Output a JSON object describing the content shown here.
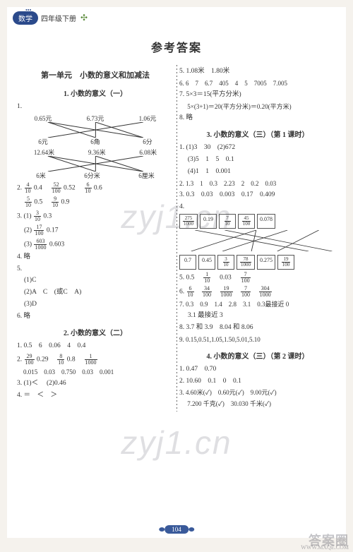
{
  "header": {
    "badge": "数学",
    "grade": "四年级下册",
    "clover": "✣"
  },
  "title": "参考答案",
  "watermark": "zyj1.cn",
  "pageNumber": "104",
  "cornerStamp": "答案圈",
  "cornerUrl": "WWW.MXQE.COM",
  "left": {
    "unitTitle": "第一单元　小数的意义和加减法",
    "sec1": "1. 小数的意义（一）",
    "q1_top1": [
      "0.65元",
      "6.73元",
      "1.06元"
    ],
    "q1_bot1": [
      "6元",
      "6角",
      "6分"
    ],
    "q1_top2": [
      "12.64米",
      "9.36米",
      "6.08米"
    ],
    "q1_bot2": [
      "6米",
      "6分米",
      "6厘米"
    ],
    "q1_pref": "1.",
    "q2": "2.",
    "q2a": {
      "n": "4",
      "d": "10",
      "dec": "0.4"
    },
    "q2b": {
      "n": "52",
      "d": "100",
      "dec": "0.52"
    },
    "q2c": {
      "n": "6",
      "d": "10",
      "dec": "0.6"
    },
    "q2d": {
      "n": "5",
      "d": "10",
      "dec": "0.5"
    },
    "q2e": {
      "n": "9",
      "d": "10",
      "dec": "0.9"
    },
    "q3": "3.",
    "q3a": {
      "lbl": "(1)",
      "n": "3",
      "d": "10",
      "dec": "0.3"
    },
    "q3b": {
      "lbl": "(2)",
      "n": "17",
      "d": "100",
      "dec": "0.17"
    },
    "q3c": {
      "lbl": "(3)",
      "n": "603",
      "d": "1000",
      "dec": "0.603"
    },
    "q4": "4. 略",
    "q5": "5.",
    "q5a": "(1)C",
    "q5b": "(2)A　C　(或C　A)",
    "q5c": "(3)D",
    "q6": "6. 略",
    "sec2": "2. 小数的意义（二）",
    "s2_1": "1. 0.5　6　0.06　4　0.4",
    "s2_2": "2.",
    "s2_2a": {
      "n": "29",
      "d": "100",
      "dec": "0.29"
    },
    "s2_2b": {
      "n": "8",
      "d": "10",
      "dec": "0.8"
    },
    "s2_2c": {
      "n": "1",
      "d": "1000"
    },
    "s2_3": "　0.015　0.03　0.750　0.03　0.001",
    "s2_4": "4. ＝　＜　＞",
    "s2_3pref": "3.",
    "s2_3a": "(1)＜",
    "s2_3b": "(2)0.46"
  },
  "right": {
    "r5": "5. 1.08米　1.80米",
    "r6": "6. 6　7　6.7　405　4　5　7005　7.005",
    "r7a": "7. 5×3＝15(平方分米)",
    "r7b": "　 5×(3+1)＝20(平方分米)＝0.20(平方米)",
    "r8": "8. 略",
    "sec3": "3. 小数的意义（三）（第 1 课时）",
    "s3_1": "1. (1)3　30　(2)672",
    "s3_1b": "　 (3)5　1　5　0.1",
    "s3_1c": "　 (4)1　1　0.001",
    "s3_2": "2. 1.3　1　0.3　2.23　2　0.2　0.03",
    "s3_3": "3. 0.3　0.03　0.003　0.17　0.409",
    "s3_4": "4.",
    "boxTop": [
      {
        "type": "frac",
        "n": "275",
        "d": "1000"
      },
      {
        "type": "txt",
        "v": "0.19"
      },
      {
        "type": "frac",
        "n": "7",
        "d": "10"
      },
      {
        "type": "frac",
        "n": "45",
        "d": "100"
      },
      {
        "type": "txt",
        "v": "0.078"
      }
    ],
    "boxBot": [
      {
        "type": "txt",
        "v": "0.7"
      },
      {
        "type": "txt",
        "v": "0.45"
      },
      {
        "type": "frac",
        "n": "3",
        "d": "10"
      },
      {
        "type": "frac",
        "n": "78",
        "d": "1000"
      },
      {
        "type": "txt",
        "v": "0.275"
      },
      {
        "type": "frac",
        "n": "19",
        "d": "100"
      }
    ],
    "s3_5": "5. 0.5",
    "s3_5a": {
      "n": "1",
      "d": "10"
    },
    "s3_5b": "0.03",
    "s3_5c": {
      "n": "7",
      "d": "100"
    },
    "s3_6": "6.",
    "s3_6f": [
      {
        "n": "6",
        "d": "10"
      },
      {
        "n": "34",
        "d": "100"
      },
      {
        "n": "19",
        "d": "1000"
      },
      {
        "n": "7",
        "d": "100"
      },
      {
        "n": "304",
        "d": "1000"
      }
    ],
    "s3_7": "7. 0.3　0.9　1.4　2.8　3.1　0.3最接近 0",
    "s3_7b": "　 3.1 最接近 3",
    "s3_8": "8. 3.7 和 3.9　8.04 和 8.06",
    "s3_9": "9. 0.15,0.51,1.05,1.50,5.01,5.10",
    "sec4": "4. 小数的意义（三）（第 2 课时）",
    "s4_1": "1. 0.47　0.70",
    "s4_2": "2. 10.60　0.1　0　0.1",
    "s4_3": "3. 4.60米(✓)　0.60元(✓)　9.00元(✓)",
    "s4_3b": "　 7.200 千克(✓)　30.030 千米(✓)"
  }
}
